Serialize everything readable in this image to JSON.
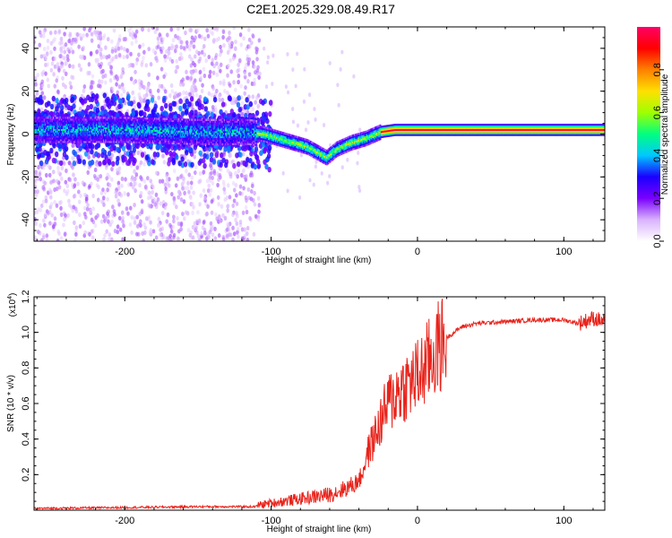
{
  "title": "C2E1.2025.329.08.49.R17",
  "chart_data": [
    {
      "type": "heatmap",
      "xlabel": "Height of straight line (km)",
      "ylabel": "Frequency (Hz)",
      "xlim": [
        -262,
        128
      ],
      "ylim": [
        -50,
        50
      ],
      "xticks": [
        -200,
        -100,
        0,
        100
      ],
      "yticks": [
        -40,
        -20,
        0,
        20,
        40
      ],
      "colorbar": {
        "label": "Normalized spectral amplitude",
        "range": [
          0,
          1
        ],
        "ticks": [
          "0.0",
          "0.2",
          "0.4",
          "0.6",
          "0.8"
        ],
        "colormap": [
          "#ffffff",
          "#d9b3ff",
          "#7a00ff",
          "#1a00ff",
          "#00c8ff",
          "#00ff80",
          "#a0ff00",
          "#ffe000",
          "#ff8000",
          "#ff0000",
          "#ff0066"
        ]
      },
      "ridge": {
        "x": [
          -262,
          -200,
          -150,
          -115,
          -105,
          -90,
          -75,
          -62,
          -55,
          -45,
          -35,
          -25,
          -15,
          0,
          50,
          100,
          128
        ],
        "frequency": [
          2,
          2,
          1,
          1,
          0,
          -3,
          -6,
          -11,
          -7,
          -4,
          -2,
          1,
          2,
          2,
          2,
          2,
          2
        ]
      }
    },
    {
      "type": "line",
      "xlabel": "Height of straight line (km)",
      "ylabel": "SNR (10 * v/v)",
      "yunit": "(x10^4)",
      "ylim_x1e4": [
        0,
        1.2
      ],
      "xlim": [
        -262,
        128
      ],
      "xticks": [
        -200,
        -100,
        0,
        100
      ],
      "yticks": [
        "0.2",
        "0.4",
        "0.6",
        "0.8",
        "1.0",
        "1.2"
      ],
      "series": [
        {
          "color": "#e8241c",
          "x": [
            -262,
            -200,
            -150,
            -110,
            -100,
            -80,
            -60,
            -50,
            -42,
            -38,
            -35,
            -30,
            -25,
            -20,
            -15,
            -12,
            -8,
            -5,
            0,
            5,
            10,
            15,
            20,
            25,
            30,
            40,
            60,
            80,
            100,
            110,
            120,
            128
          ],
          "y_x1e4": [
            0.01,
            0.015,
            0.02,
            0.02,
            0.03,
            0.05,
            0.07,
            0.1,
            0.13,
            0.2,
            0.3,
            0.4,
            0.5,
            0.6,
            0.65,
            0.68,
            0.7,
            0.72,
            0.75,
            0.8,
            0.87,
            0.92,
            0.97,
            1.0,
            1.03,
            1.05,
            1.06,
            1.07,
            1.07,
            1.05,
            1.08,
            1.06
          ]
        }
      ]
    }
  ]
}
